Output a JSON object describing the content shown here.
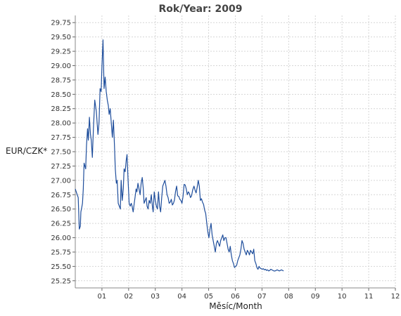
{
  "chart_data": {
    "type": "line",
    "title": "Rok/Year: 2009",
    "xlabel": "Měsíc/Month",
    "ylabel": "EUR/CZK*",
    "x_unit": "month",
    "xlim": [
      0,
      12
    ],
    "ylim": [
      25.125,
      29.875
    ],
    "x_ticks": [
      1,
      2,
      3,
      4,
      5,
      6,
      7,
      8,
      9,
      10,
      11,
      12
    ],
    "x_tick_labels": [
      "01",
      "02",
      "03",
      "04",
      "05",
      "06",
      "07",
      "08",
      "09",
      "10",
      "11",
      "12"
    ],
    "y_ticks": [
      25.25,
      25.5,
      25.75,
      26.0,
      26.25,
      26.5,
      26.75,
      27.0,
      27.25,
      27.5,
      27.75,
      28.0,
      28.25,
      28.5,
      28.75,
      29.0,
      29.25,
      29.5,
      29.75
    ],
    "y_tick_labels": [
      "25.25",
      "25.50",
      "25.75",
      "26.00",
      "26.25",
      "26.50",
      "26.75",
      "27.00",
      "27.25",
      "27.50",
      "27.75",
      "28.00",
      "28.25",
      "28.50",
      "28.75",
      "29.00",
      "29.25",
      "29.50",
      "29.75"
    ],
    "grid": true,
    "line_color": "#1f4e9c",
    "series": [
      {
        "x": [
          0.0,
          0.05,
          0.11,
          0.15,
          0.19,
          0.21,
          0.24,
          0.27,
          0.3,
          0.33,
          0.39,
          0.42,
          0.46,
          0.49,
          0.53,
          0.57,
          0.6,
          0.64,
          0.68,
          0.73,
          0.76,
          0.79,
          0.85,
          0.89,
          0.93,
          0.97,
          1.0,
          1.04,
          1.08,
          1.12,
          1.16,
          1.2,
          1.24,
          1.27,
          1.31,
          1.35,
          1.39,
          1.43,
          1.47,
          1.5,
          1.54,
          1.57,
          1.61,
          1.65,
          1.69,
          1.72,
          1.76,
          1.8,
          1.83,
          1.87,
          1.91,
          1.94,
          1.98,
          2.02,
          2.06,
          2.1,
          2.13,
          2.17,
          2.21,
          2.24,
          2.28,
          2.31,
          2.35,
          2.39,
          2.43,
          2.47,
          2.51,
          2.55,
          2.58,
          2.62,
          2.66,
          2.69,
          2.73,
          2.77,
          2.81,
          2.85,
          2.89,
          2.92,
          2.96,
          3.0,
          3.04,
          3.08,
          3.12,
          3.16,
          3.2,
          3.24,
          3.28,
          3.32,
          3.36,
          3.4,
          3.44,
          3.48,
          3.52,
          3.56,
          3.6,
          3.64,
          3.68,
          3.72,
          3.76,
          3.8,
          3.84,
          3.88,
          3.92,
          3.96,
          4.0,
          4.04,
          4.08,
          4.12,
          4.16,
          4.2,
          4.24,
          4.28,
          4.32,
          4.36,
          4.4,
          4.45,
          4.49,
          4.53,
          4.57,
          4.61,
          4.65,
          4.69,
          4.73,
          4.77,
          4.81,
          4.85,
          4.89,
          4.93,
          4.97,
          5.01,
          5.05,
          5.09,
          5.13,
          5.17,
          5.21,
          5.25,
          5.29,
          5.33,
          5.37,
          5.41,
          5.45,
          5.49,
          5.53,
          5.57,
          5.61,
          5.65,
          5.69,
          5.73,
          5.77,
          5.81,
          5.85,
          5.89,
          5.93,
          5.97,
          6.01,
          6.05,
          6.09,
          6.13,
          6.17,
          6.21,
          6.25,
          6.29,
          6.33,
          6.37,
          6.41,
          6.45,
          6.49,
          6.53,
          6.57,
          6.61,
          6.65,
          6.69,
          6.73,
          6.77,
          6.81,
          6.85,
          6.89,
          6.93,
          6.97,
          7.01,
          7.05,
          7.09,
          7.13,
          7.17,
          7.21,
          7.25,
          7.29,
          7.33,
          7.37,
          7.41,
          7.45,
          7.49,
          7.53,
          7.57,
          7.61,
          7.65,
          7.69,
          7.73,
          7.77,
          7.81
        ],
        "y": [
          26.85,
          26.78,
          26.7,
          26.15,
          26.2,
          26.45,
          26.52,
          26.6,
          26.85,
          27.3,
          27.2,
          27.6,
          27.9,
          27.7,
          28.1,
          27.8,
          27.7,
          27.4,
          27.9,
          28.4,
          28.3,
          28.2,
          27.8,
          28.0,
          28.6,
          28.55,
          29.0,
          29.45,
          28.6,
          28.8,
          28.55,
          28.4,
          28.3,
          28.15,
          28.25,
          28.0,
          27.75,
          28.05,
          27.6,
          27.2,
          26.95,
          27.0,
          26.6,
          26.55,
          26.5,
          27.0,
          26.65,
          26.85,
          27.2,
          27.15,
          27.35,
          27.45,
          27.0,
          26.6,
          26.55,
          26.6,
          26.55,
          26.45,
          26.6,
          26.7,
          26.85,
          26.8,
          26.95,
          26.85,
          26.75,
          26.95,
          27.05,
          26.85,
          26.6,
          26.65,
          26.7,
          26.55,
          26.5,
          26.65,
          26.6,
          26.75,
          26.55,
          26.45,
          26.8,
          26.65,
          26.55,
          26.5,
          26.8,
          26.55,
          26.45,
          26.7,
          26.9,
          26.95,
          27.0,
          26.9,
          26.75,
          26.7,
          26.6,
          26.62,
          26.67,
          26.57,
          26.6,
          26.66,
          26.81,
          26.9,
          26.73,
          26.72,
          26.67,
          26.65,
          26.6,
          26.72,
          26.93,
          26.92,
          26.85,
          26.75,
          26.8,
          26.77,
          26.7,
          26.73,
          26.83,
          26.9,
          26.83,
          26.78,
          26.88,
          27.0,
          26.9,
          26.65,
          26.68,
          26.62,
          26.58,
          26.48,
          26.42,
          26.25,
          26.1,
          26.0,
          26.15,
          26.25,
          26.05,
          25.95,
          25.85,
          25.75,
          25.9,
          25.95,
          25.9,
          25.85,
          25.95,
          26.0,
          26.05,
          25.95,
          26.0,
          26.0,
          25.9,
          25.8,
          25.75,
          25.85,
          25.7,
          25.6,
          25.55,
          25.48,
          25.5,
          25.52,
          25.6,
          25.65,
          25.7,
          25.8,
          25.95,
          25.9,
          25.8,
          25.75,
          25.7,
          25.78,
          25.75,
          25.7,
          25.78,
          25.75,
          25.72,
          25.8,
          25.6,
          25.55,
          25.48,
          25.45,
          25.5,
          25.47,
          25.46,
          25.45,
          25.46,
          25.44,
          25.45,
          25.43,
          25.44,
          25.42,
          25.43,
          25.45,
          25.44,
          25.43,
          25.42,
          25.42,
          25.43,
          25.44,
          25.43,
          25.42,
          25.43,
          25.44,
          25.43,
          25.42
        ]
      }
    ]
  }
}
